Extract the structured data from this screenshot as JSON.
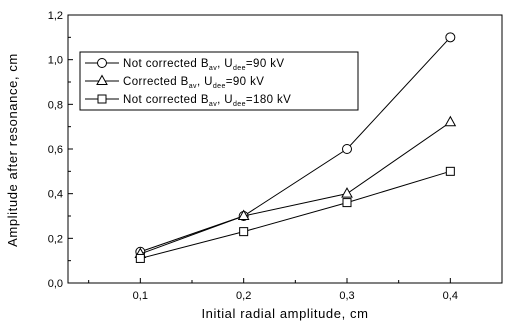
{
  "chart_data": {
    "type": "line",
    "x": [
      0.1,
      0.2,
      0.3,
      0.4
    ],
    "x_tick_labels": [
      "0,1",
      "0,2",
      "0,3",
      "0,4"
    ],
    "xlim": [
      0.03,
      0.45
    ],
    "ylim": [
      0.0,
      1.2
    ],
    "y_ticks": [
      0.0,
      0.2,
      0.4,
      0.6,
      0.8,
      1.0,
      1.2
    ],
    "y_tick_labels": [
      "0,0",
      "0,2",
      "0,4",
      "0,6",
      "0,8",
      "1,0",
      "1,2"
    ],
    "xlabel": "Initial radial amplitude,  cm",
    "ylabel": "Amplitude after resonance,  cm",
    "grid": false,
    "legend_position": "top-left",
    "series": [
      {
        "name_parts": {
          "a": "Not corrected B",
          "sub1": "av",
          "b": ", U",
          "sub2": "dee",
          "c": "=90 kV"
        },
        "marker": "circle",
        "values": [
          0.14,
          0.3,
          0.6,
          1.1
        ]
      },
      {
        "name_parts": {
          "a": "Corrected B",
          "sub1": "av",
          "b": ", U",
          "sub2": "dee",
          "c": "=90 kV"
        },
        "marker": "triangle",
        "values": [
          0.13,
          0.3,
          0.4,
          0.72
        ]
      },
      {
        "name_parts": {
          "a": "Not corrected B",
          "sub1": "av",
          "b": ", U",
          "sub2": "dee",
          "c": "=180 kV"
        },
        "marker": "square",
        "values": [
          0.11,
          0.23,
          0.36,
          0.5
        ]
      }
    ],
    "colors": {
      "line": "#000000",
      "marker_fill": "#ffffff"
    }
  }
}
